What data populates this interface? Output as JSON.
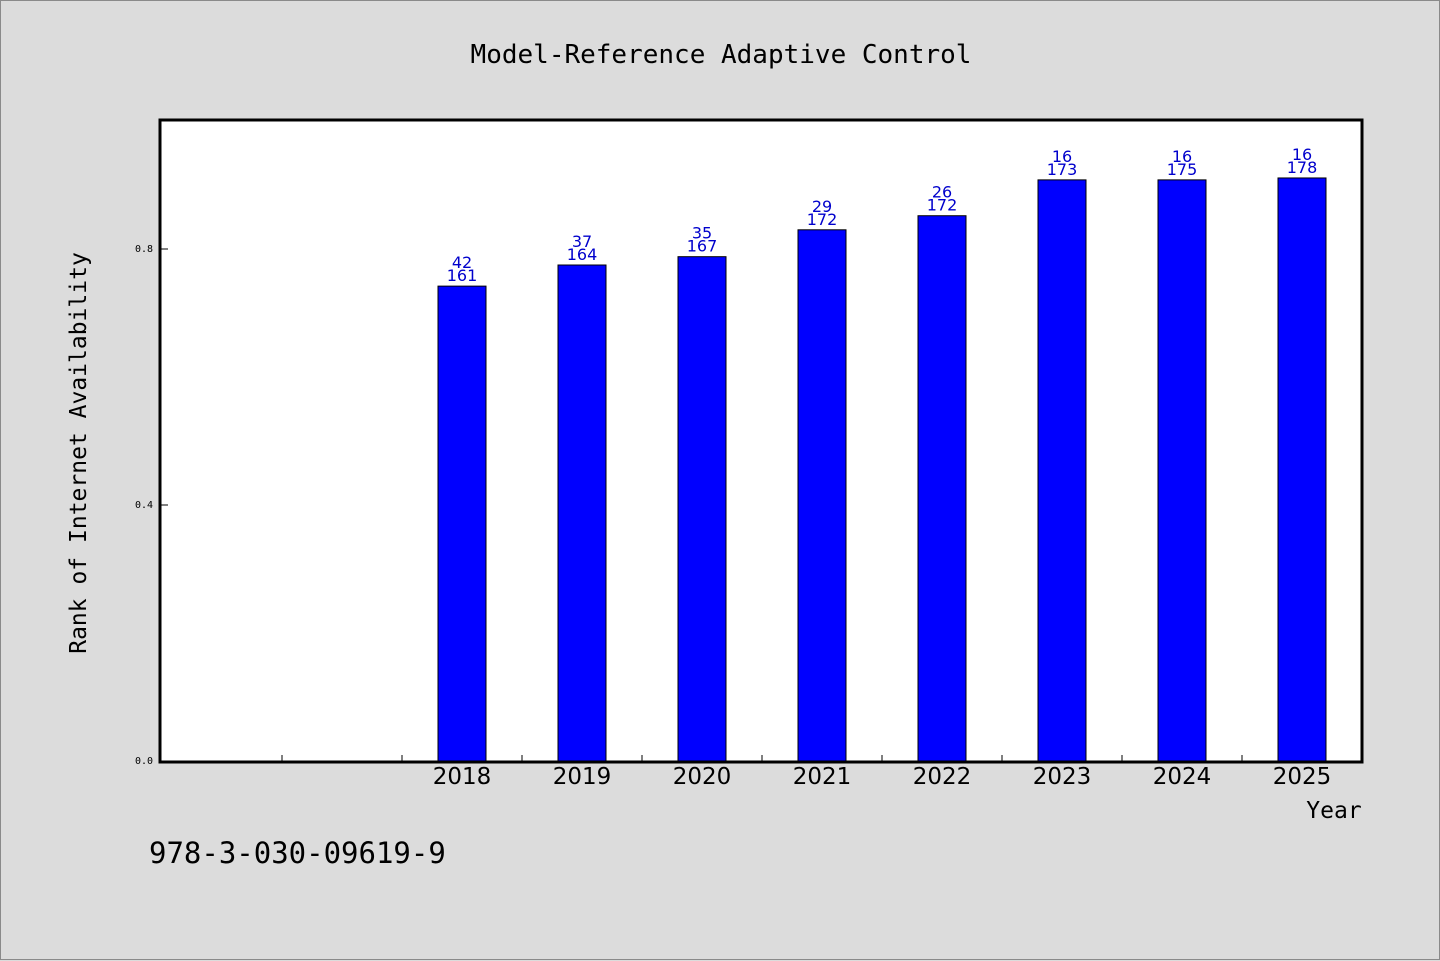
{
  "chart_data": {
    "type": "bar",
    "title": "Model-Reference Adaptive Control",
    "xlabel": "Year",
    "ylabel": "Rank of Internet Availability",
    "categories": [
      "",
      "",
      "2018",
      "2019",
      "2020",
      "2021",
      "2022",
      "2023",
      "2024",
      "2025"
    ],
    "values": [
      null,
      null,
      0.742,
      0.775,
      0.788,
      0.83,
      0.852,
      0.908,
      0.908,
      0.911
    ],
    "label_top": [
      "",
      "",
      "42",
      "37",
      "35",
      "29",
      "26",
      "16",
      "16",
      "16"
    ],
    "label_bottom": [
      "",
      "",
      "161",
      "164",
      "167",
      "172",
      "172",
      "173",
      "175",
      "178"
    ],
    "ylim": [
      0,
      1.0
    ],
    "yticks": [
      0.0,
      0.4,
      0.8
    ],
    "ytick_labels": [
      "0.0",
      "0.4",
      "0.8"
    ],
    "grid": false,
    "legend": "none"
  },
  "colors": {
    "bar_fill": "#0000ff",
    "bar_stroke": "#000000",
    "data_label": "#0000cc",
    "plot_bg": "#ffffff",
    "page_bg": "#dcdcdc"
  },
  "footnote": "978-3-030-09619-9"
}
